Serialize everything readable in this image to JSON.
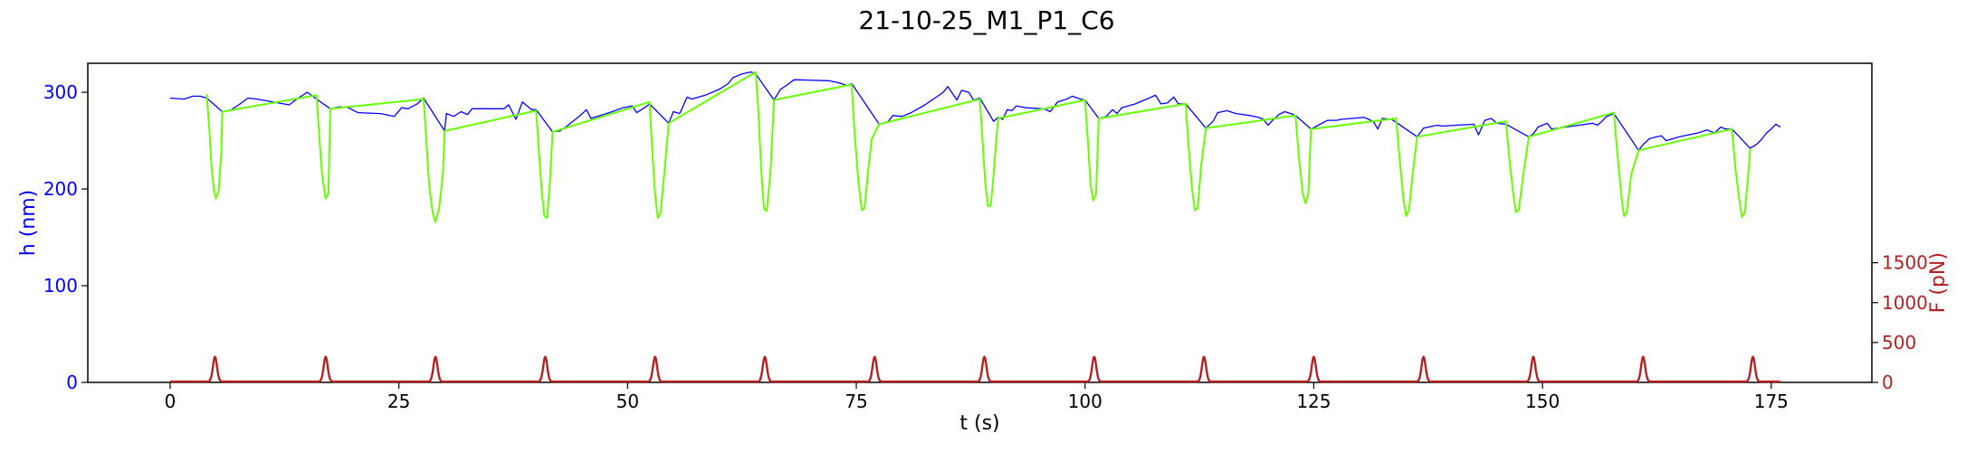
{
  "chart_data": {
    "type": "line",
    "title": "21-10-25_M1_P1_C6",
    "xlabel": "t (s)",
    "ylabel_left": "h (nm)",
    "ylabel_right": "F (pN)",
    "xlim": [
      -9,
      186
    ],
    "ylim_left": [
      0,
      330
    ],
    "ylim_right": [
      0,
      4000
    ],
    "x_ticks": [
      0,
      25,
      50,
      75,
      100,
      125,
      150,
      175
    ],
    "y_left_ticks": [
      0,
      100,
      200,
      300
    ],
    "y_right_ticks": [
      0,
      500,
      1000,
      1500
    ],
    "grid": false,
    "colors": {
      "height_line": "#0000ff",
      "height_approach": "#66ff00",
      "force_line": "#b22222",
      "left_axis_text": "#0000ff",
      "right_axis_text": "#b22222"
    },
    "series": [
      {
        "axis": "left",
        "color": "#0000ff",
        "points": [
          [
            0,
            294
          ],
          [
            1.5,
            293
          ],
          [
            2.5,
            296
          ],
          [
            3.3,
            296
          ],
          [
            4,
            294
          ],
          [
            5.7,
            280
          ],
          [
            6.5,
            281
          ],
          [
            7.5,
            287
          ],
          [
            8.5,
            294
          ],
          [
            9.5,
            293
          ],
          [
            13,
            287
          ],
          [
            14,
            294
          ],
          [
            15,
            300
          ],
          [
            16,
            293
          ],
          [
            17.5,
            283
          ],
          [
            18.5,
            285
          ],
          [
            19.5,
            284
          ],
          [
            20.5,
            279
          ],
          [
            23,
            278
          ],
          [
            24.5,
            275
          ],
          [
            25.3,
            284
          ],
          [
            26,
            283
          ],
          [
            27,
            288
          ],
          [
            27.7,
            294
          ],
          [
            30,
            260
          ],
          [
            30.2,
            278
          ],
          [
            31,
            275
          ],
          [
            31.8,
            280
          ],
          [
            32.5,
            277
          ],
          [
            33,
            283
          ],
          [
            36.5,
            283
          ],
          [
            37,
            287
          ],
          [
            37.8,
            272
          ],
          [
            38.5,
            290
          ],
          [
            39.5,
            282
          ],
          [
            40,
            282
          ],
          [
            41.8,
            259
          ],
          [
            42.6,
            260
          ],
          [
            43.5,
            266
          ],
          [
            44.7,
            275
          ],
          [
            45.5,
            282
          ],
          [
            46,
            273
          ],
          [
            48,
            279
          ],
          [
            49.5,
            284
          ],
          [
            50.5,
            286
          ],
          [
            51,
            279
          ],
          [
            52,
            285
          ],
          [
            52.4,
            288
          ],
          [
            54.5,
            268
          ],
          [
            55,
            280
          ],
          [
            55.7,
            278
          ],
          [
            56.5,
            295
          ],
          [
            57,
            293
          ],
          [
            58.5,
            297
          ],
          [
            60,
            303
          ],
          [
            61,
            309
          ],
          [
            61.5,
            315
          ],
          [
            62.5,
            319
          ],
          [
            63.5,
            321
          ],
          [
            64,
            319
          ],
          [
            66,
            292
          ],
          [
            66.7,
            303
          ],
          [
            67.5,
            308
          ],
          [
            68.2,
            313
          ],
          [
            72,
            312
          ],
          [
            73,
            310
          ],
          [
            74,
            307
          ],
          [
            74.5,
            309
          ],
          [
            77.5,
            267
          ],
          [
            78.5,
            270
          ],
          [
            79,
            276
          ],
          [
            80,
            275
          ],
          [
            81,
            279
          ],
          [
            82.5,
            287
          ],
          [
            84.5,
            300
          ],
          [
            85,
            306
          ],
          [
            86,
            292
          ],
          [
            86.5,
            302
          ],
          [
            87.3,
            300
          ],
          [
            87.8,
            292
          ],
          [
            88.5,
            294
          ],
          [
            90,
            270
          ],
          [
            90.5,
            274
          ],
          [
            91,
            272
          ],
          [
            91.5,
            282
          ],
          [
            92,
            281
          ],
          [
            92.5,
            286
          ],
          [
            93.5,
            284
          ],
          [
            95.5,
            283
          ],
          [
            96.2,
            280
          ],
          [
            97,
            290
          ],
          [
            98,
            293
          ],
          [
            98.6,
            296
          ],
          [
            99.5,
            293
          ],
          [
            100,
            292
          ],
          [
            101.5,
            273
          ],
          [
            102.3,
            275
          ],
          [
            103,
            282
          ],
          [
            103.5,
            278
          ],
          [
            104,
            284
          ],
          [
            105.5,
            288
          ],
          [
            107,
            294
          ],
          [
            107.7,
            297
          ],
          [
            108.3,
            288
          ],
          [
            109,
            289
          ],
          [
            109.7,
            295
          ],
          [
            110.2,
            288
          ],
          [
            111,
            288
          ],
          [
            113.2,
            263
          ],
          [
            114,
            270
          ],
          [
            114.5,
            279
          ],
          [
            115.5,
            281
          ],
          [
            116.5,
            278
          ],
          [
            118,
            276
          ],
          [
            119,
            274
          ],
          [
            119.5,
            272
          ],
          [
            120,
            266
          ],
          [
            120.5,
            271
          ],
          [
            121.2,
            277
          ],
          [
            121.8,
            280
          ],
          [
            122.5,
            278
          ],
          [
            123,
            276
          ],
          [
            124.7,
            262
          ],
          [
            125.5,
            266
          ],
          [
            126.5,
            271
          ],
          [
            127.5,
            271
          ],
          [
            128,
            272
          ],
          [
            130.5,
            274
          ],
          [
            131.5,
            270
          ],
          [
            132,
            262
          ],
          [
            132.5,
            273
          ],
          [
            133.5,
            272
          ],
          [
            134,
            269
          ],
          [
            136.3,
            254
          ],
          [
            137,
            263
          ],
          [
            137.5,
            264
          ],
          [
            138.5,
            266
          ],
          [
            139,
            265
          ],
          [
            142.5,
            267
          ],
          [
            143,
            256
          ],
          [
            143.7,
            271
          ],
          [
            144.4,
            273
          ],
          [
            145,
            268
          ],
          [
            146,
            267
          ],
          [
            148.5,
            254
          ],
          [
            149,
            257
          ],
          [
            149.5,
            264
          ],
          [
            150,
            266
          ],
          [
            150.5,
            268
          ],
          [
            151,
            262
          ],
          [
            152.5,
            264
          ],
          [
            154,
            266
          ],
          [
            155.5,
            268
          ],
          [
            156,
            266
          ],
          [
            156.5,
            270
          ],
          [
            157,
            275
          ],
          [
            157.8,
            278
          ],
          [
            160.5,
            240
          ],
          [
            161,
            246
          ],
          [
            161.7,
            252
          ],
          [
            162.5,
            254
          ],
          [
            163,
            255
          ],
          [
            163.5,
            250
          ],
          [
            165,
            254
          ],
          [
            167,
            258
          ],
          [
            168,
            261
          ],
          [
            168.8,
            258
          ],
          [
            169.5,
            264
          ],
          [
            170,
            262
          ],
          [
            170.7,
            262
          ],
          [
            172.7,
            242
          ],
          [
            173.5,
            247
          ],
          [
            174,
            252
          ],
          [
            174.5,
            258
          ],
          [
            175,
            262
          ],
          [
            175.5,
            267
          ],
          [
            176,
            264
          ]
        ]
      },
      {
        "axis": "left",
        "color": "#66ff00",
        "points": [
          [
            4,
            298
          ],
          [
            4.3,
            260
          ],
          [
            4.5,
            225
          ],
          [
            4.8,
            198
          ],
          [
            5,
            190
          ],
          [
            5.3,
            198
          ],
          [
            5.6,
            240
          ],
          [
            5.7,
            280
          ],
          [
            16,
            297
          ],
          [
            16.3,
            255
          ],
          [
            16.6,
            215
          ],
          [
            17,
            190
          ],
          [
            17.3,
            196
          ],
          [
            17.5,
            283
          ],
          [
            27.7,
            293
          ],
          [
            28,
            250
          ],
          [
            28.3,
            205
          ],
          [
            28.7,
            175
          ],
          [
            29,
            166
          ],
          [
            29.4,
            180
          ],
          [
            29.8,
            215
          ],
          [
            30,
            260
          ],
          [
            40,
            281
          ],
          [
            40.3,
            240
          ],
          [
            40.6,
            200
          ],
          [
            40.9,
            172
          ],
          [
            41.2,
            170
          ],
          [
            41.5,
            205
          ],
          [
            41.8,
            259
          ],
          [
            52.4,
            290
          ],
          [
            52.7,
            240
          ],
          [
            53,
            195
          ],
          [
            53.3,
            170
          ],
          [
            53.6,
            175
          ],
          [
            54,
            215
          ],
          [
            54.5,
            268
          ],
          [
            64,
            321
          ],
          [
            64.3,
            280
          ],
          [
            64.6,
            220
          ],
          [
            64.9,
            180
          ],
          [
            65.2,
            177
          ],
          [
            65.6,
            215
          ],
          [
            66,
            292
          ],
          [
            74.5,
            308
          ],
          [
            74.8,
            260
          ],
          [
            75.2,
            210
          ],
          [
            75.6,
            178
          ],
          [
            75.9,
            180
          ],
          [
            76.3,
            220
          ],
          [
            76.7,
            252
          ],
          [
            77.5,
            267
          ],
          [
            88.5,
            293
          ],
          [
            88.8,
            250
          ],
          [
            89.1,
            205
          ],
          [
            89.4,
            182
          ],
          [
            89.7,
            183
          ],
          [
            90,
            215
          ],
          [
            90.3,
            252
          ],
          [
            90.5,
            273
          ],
          [
            100,
            292
          ],
          [
            100.3,
            250
          ],
          [
            100.6,
            205
          ],
          [
            100.9,
            188
          ],
          [
            101.2,
            195
          ],
          [
            101.5,
            273
          ],
          [
            111,
            288
          ],
          [
            111.3,
            245
          ],
          [
            111.7,
            200
          ],
          [
            112,
            178
          ],
          [
            112.3,
            180
          ],
          [
            112.7,
            225
          ],
          [
            113.2,
            263
          ],
          [
            123,
            276
          ],
          [
            123.4,
            230
          ],
          [
            123.8,
            195
          ],
          [
            124.1,
            185
          ],
          [
            124.4,
            195
          ],
          [
            124.7,
            262
          ],
          [
            134,
            273
          ],
          [
            134.4,
            230
          ],
          [
            134.8,
            190
          ],
          [
            135.1,
            172
          ],
          [
            135.4,
            178
          ],
          [
            135.8,
            215
          ],
          [
            136.3,
            254
          ],
          [
            146,
            270
          ],
          [
            146.4,
            230
          ],
          [
            146.8,
            195
          ],
          [
            147.1,
            176
          ],
          [
            147.4,
            178
          ],
          [
            147.9,
            215
          ],
          [
            148.5,
            254
          ],
          [
            157.8,
            279
          ],
          [
            158.2,
            235
          ],
          [
            158.6,
            195
          ],
          [
            158.9,
            172
          ],
          [
            159.2,
            175
          ],
          [
            159.7,
            215
          ],
          [
            160.5,
            240
          ],
          [
            170.7,
            262
          ],
          [
            171.1,
            220
          ],
          [
            171.5,
            190
          ],
          [
            171.8,
            171
          ],
          [
            172.1,
            175
          ],
          [
            172.5,
            215
          ],
          [
            172.7,
            242
          ]
        ]
      }
    ],
    "force_series": {
      "axis": "right",
      "color": "#b22222",
      "baseline": 10,
      "peak_height": 310,
      "peak_width_s": 0.32,
      "x_range": [
        0,
        176
      ],
      "peaks_t": [
        4.9,
        17,
        29,
        41,
        53,
        65,
        77,
        89,
        101,
        113,
        125,
        137,
        149,
        161,
        173
      ]
    }
  }
}
